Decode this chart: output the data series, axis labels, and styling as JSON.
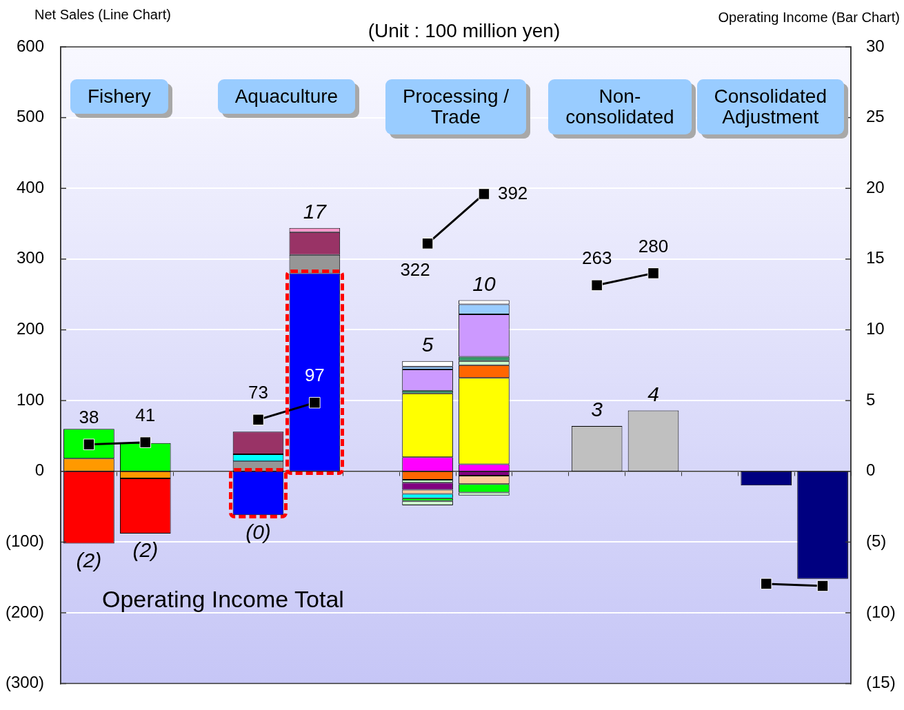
{
  "chart_data": {
    "type": "bar",
    "title": "(Unit : 100 million yen)",
    "ylabel": "Net Sales (Line Chart)",
    "y2label": "Operating Income (Bar Chart)",
    "categories": [
      null,
      null,
      null,
      null,
      null,
      null,
      null,
      null,
      null,
      null,
      null,
      null,
      null,
      null
    ],
    "stacked": true,
    "series": [
      {
        "axis": "y2",
        "values": [
          0.9,
          2.0,
          null,
          0.7,
          14.0,
          null,
          1.0,
          0.5,
          null,
          3.2,
          4.3,
          null,
          -1.0,
          -7.6
        ],
        "colors": [
          "#ff9900",
          "#00ff00",
          null,
          "#969696",
          "#0000ff",
          null,
          "#ff00ff",
          "#ff00ff",
          null,
          "#c0c0c0",
          "#c0c0c0",
          null,
          "#000080",
          "#000080"
        ]
      },
      {
        "axis": "y2",
        "values": [
          2.1,
          -0.5,
          null,
          0.5,
          1.3,
          null,
          4.5,
          6.1,
          null,
          null,
          null,
          null,
          null,
          null
        ],
        "colors": [
          "#00ff00",
          "#ff9900",
          null,
          "#00ffff",
          "#969696",
          null,
          "#ffff00",
          "#ffff00",
          null,
          null,
          null,
          null,
          null,
          null
        ]
      },
      {
        "axis": "y2",
        "values": [
          -5.1,
          -3.9,
          null,
          1.6,
          1.6,
          null,
          0.2,
          0.9,
          null,
          null,
          null,
          null,
          null,
          null
        ],
        "colors": [
          "#ff0000",
          "#ff0000",
          null,
          "#993366",
          "#993366",
          null,
          "#339966",
          "#ff6600",
          null,
          null,
          null,
          null,
          null,
          null
        ]
      },
      {
        "axis": "y2",
        "values": [
          null,
          null,
          null,
          -3.1,
          0.3,
          null,
          1.5,
          0.3,
          null,
          null,
          null,
          null,
          null,
          null
        ],
        "colors": [
          null,
          null,
          null,
          "#0000ff",
          "#ff99cc",
          null,
          "#cc99ff",
          "#ccffcc",
          null,
          null,
          null,
          null,
          null,
          null
        ]
      },
      {
        "axis": "y2",
        "values": [
          null,
          null,
          null,
          null,
          null,
          null,
          0.2,
          0.3,
          null,
          null,
          null,
          null,
          null,
          null
        ],
        "colors": [
          null,
          null,
          null,
          null,
          null,
          null,
          "#99ccff",
          "#339966",
          null,
          null,
          null,
          null,
          null,
          null
        ]
      },
      {
        "axis": "y2",
        "values": [
          null,
          null,
          null,
          null,
          null,
          null,
          0.4,
          3.0,
          null,
          null,
          null,
          null,
          null,
          null
        ],
        "colors": [
          null,
          null,
          null,
          null,
          null,
          null,
          "#ffffff",
          "#cc99ff",
          null,
          null,
          null,
          null,
          null,
          null
        ]
      },
      {
        "axis": "y2",
        "values": [
          null,
          null,
          null,
          null,
          null,
          null,
          -0.6,
          0.7,
          null,
          null,
          null,
          null,
          null,
          null
        ],
        "colors": [
          null,
          null,
          null,
          null,
          null,
          null,
          "#ff6600",
          "#99ccff",
          null,
          null,
          null,
          null,
          null,
          null
        ]
      },
      {
        "axis": "y2",
        "values": [
          null,
          null,
          null,
          null,
          null,
          null,
          -0.2,
          0.3,
          null,
          null,
          null,
          null,
          null,
          null
        ],
        "colors": [
          null,
          null,
          null,
          null,
          null,
          null,
          "#ccffcc",
          "#ffffff",
          null,
          null,
          null,
          null,
          null,
          null
        ]
      },
      {
        "axis": "y2",
        "values": [
          null,
          null,
          null,
          null,
          null,
          null,
          -0.5,
          -0.3,
          null,
          null,
          null,
          null,
          null,
          null
        ],
        "colors": [
          null,
          null,
          null,
          null,
          null,
          null,
          "#800080",
          "#800080",
          null,
          null,
          null,
          null,
          null,
          null
        ]
      },
      {
        "axis": "y2",
        "values": [
          null,
          null,
          null,
          null,
          null,
          null,
          -0.3,
          -0.6,
          null,
          null,
          null,
          null,
          null,
          null
        ],
        "colors": [
          null,
          null,
          null,
          null,
          null,
          null,
          "#ffcc99",
          "#ffcc99",
          null,
          null,
          null,
          null,
          null,
          null
        ]
      },
      {
        "axis": "y2",
        "values": [
          null,
          null,
          null,
          null,
          null,
          null,
          -0.3,
          -0.6,
          null,
          null,
          null,
          null,
          null,
          null
        ],
        "colors": [
          null,
          null,
          null,
          null,
          null,
          null,
          "#00ffff",
          "#00ff00",
          null,
          null,
          null,
          null,
          null,
          null
        ]
      },
      {
        "axis": "y2",
        "values": [
          null,
          null,
          null,
          null,
          null,
          null,
          -0.2,
          -0.2,
          null,
          null,
          null,
          null,
          null,
          null
        ],
        "colors": [
          null,
          null,
          null,
          null,
          null,
          null,
          "#00ff00",
          "#ccffcc",
          null,
          null,
          null,
          null,
          null,
          null
        ]
      },
      {
        "axis": "y2",
        "values": [
          null,
          null,
          null,
          null,
          null,
          null,
          -0.3,
          null,
          null,
          null,
          null,
          null,
          null,
          null
        ],
        "colors": [
          null,
          null,
          null,
          null,
          null,
          null,
          "#ccffcc",
          null,
          null,
          null,
          null,
          null,
          null,
          null
        ]
      },
      {
        "type": "line",
        "axis": "y",
        "color": "#000000",
        "values": [
          38,
          41,
          null,
          73,
          97,
          null,
          322,
          392,
          null,
          263,
          280,
          null,
          -159,
          -162
        ],
        "value_labels": [
          "38",
          "41",
          null,
          "73",
          "97",
          null,
          "322",
          "392",
          null,
          "263",
          "280",
          null,
          null,
          null
        ]
      }
    ],
    "ylim": [
      -300,
      600
    ],
    "yticks": [
      {
        "value": -300,
        "label": "(300)"
      },
      {
        "value": -200,
        "label": "(200)"
      },
      {
        "value": -100,
        "label": "(100)"
      },
      0,
      100,
      200,
      300,
      400,
      500,
      600
    ],
    "y2lim": [
      -15,
      30
    ],
    "y2ticks": [
      {
        "value": -15,
        "label": "(15)"
      },
      {
        "value": -10,
        "label": "(10)"
      },
      {
        "value": -5,
        "label": "(5)"
      },
      0,
      5,
      10,
      15,
      20,
      25,
      30
    ],
    "grid": "y",
    "tick_labels": "y",
    "marker": "square",
    "line_style": "solid",
    "totals": [
      "(2)",
      "(2)",
      null,
      "(0)",
      "17",
      null,
      "5",
      "10",
      null,
      "3",
      "4",
      null,
      null,
      null
    ],
    "annotations": [
      "Fishery",
      "Aquaculture",
      "Processing / Trade",
      "Non-consolidated",
      "Consolidated Adjustment",
      "Operating Income Total"
    ]
  }
}
